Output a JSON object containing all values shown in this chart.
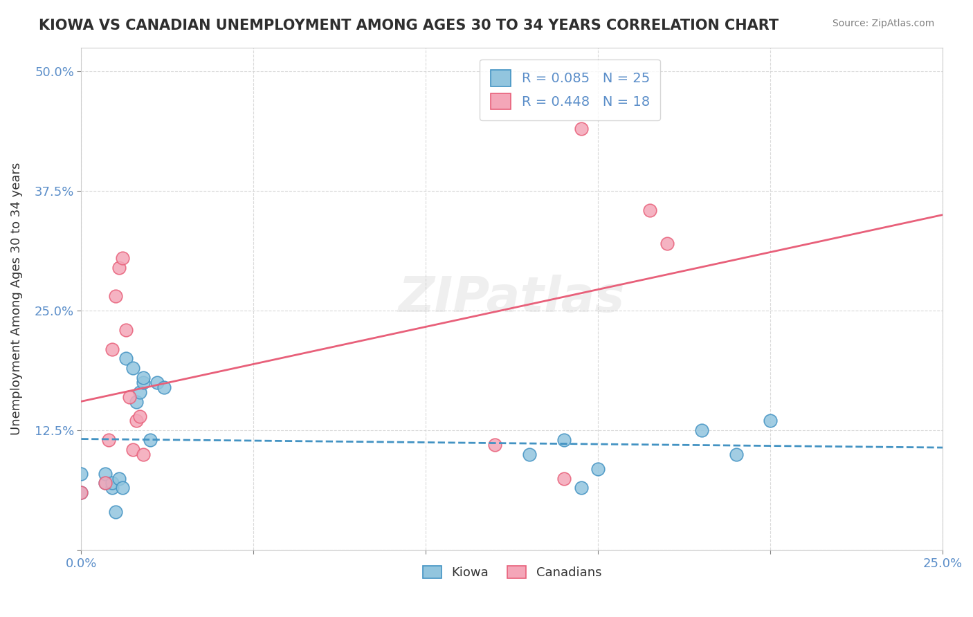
{
  "title": "KIOWA VS CANADIAN UNEMPLOYMENT AMONG AGES 30 TO 34 YEARS CORRELATION CHART",
  "source": "Source: ZipAtlas.com",
  "ylabel": "Unemployment Among Ages 30 to 34 years",
  "xlim": [
    0.0,
    0.25
  ],
  "ylim": [
    0.0,
    0.525
  ],
  "xticks": [
    0.0,
    0.05,
    0.1,
    0.15,
    0.2,
    0.25
  ],
  "yticks": [
    0.0,
    0.125,
    0.25,
    0.375,
    0.5
  ],
  "xticklabels": [
    "0.0%",
    "",
    "",
    "",
    "",
    "25.0%"
  ],
  "yticklabels": [
    "",
    "12.5%",
    "25.0%",
    "37.5%",
    "50.0%"
  ],
  "kiowa_R": 0.085,
  "kiowa_N": 25,
  "canadian_R": 0.448,
  "canadian_N": 18,
  "kiowa_color": "#92c5de",
  "canadian_color": "#f4a6b8",
  "kiowa_line_color": "#4393c3",
  "canadian_line_color": "#e8607a",
  "background_color": "#ffffff",
  "grid_color": "#d0d0d0",
  "watermark": "ZIPatlas",
  "kiowa_x": [
    0.0,
    0.0,
    0.007,
    0.007,
    0.009,
    0.009,
    0.01,
    0.011,
    0.012,
    0.013,
    0.015,
    0.016,
    0.017,
    0.018,
    0.018,
    0.02,
    0.022,
    0.024,
    0.13,
    0.14,
    0.145,
    0.15,
    0.18,
    0.19,
    0.2
  ],
  "kiowa_y": [
    0.06,
    0.08,
    0.07,
    0.08,
    0.065,
    0.07,
    0.04,
    0.075,
    0.065,
    0.2,
    0.19,
    0.155,
    0.165,
    0.175,
    0.18,
    0.115,
    0.175,
    0.17,
    0.1,
    0.115,
    0.065,
    0.085,
    0.125,
    0.1,
    0.135
  ],
  "canadian_x": [
    0.0,
    0.007,
    0.008,
    0.009,
    0.01,
    0.011,
    0.012,
    0.013,
    0.014,
    0.015,
    0.016,
    0.017,
    0.018,
    0.12,
    0.14,
    0.145,
    0.165,
    0.17
  ],
  "canadian_y": [
    0.06,
    0.07,
    0.115,
    0.21,
    0.265,
    0.295,
    0.305,
    0.23,
    0.16,
    0.105,
    0.135,
    0.14,
    0.1,
    0.11,
    0.075,
    0.44,
    0.355,
    0.32
  ]
}
